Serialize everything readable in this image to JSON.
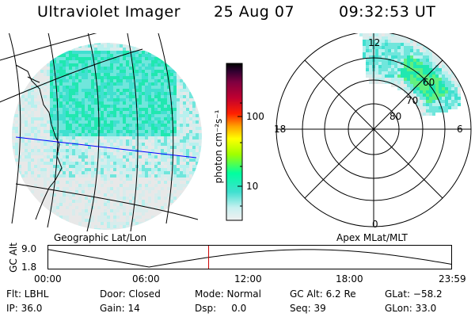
{
  "header": {
    "instrument": "Ultraviolet Imager",
    "date": "25 Aug 07",
    "time": "09:32:53 UT"
  },
  "colors": {
    "geo_grid": "#000000",
    "scan_line": "#0000ff",
    "time_marker": "#cc0000"
  },
  "colorbar": {
    "label": "photon cm⁻²s⁻¹",
    "ticks": [
      "100",
      "10"
    ],
    "stops": [
      "#f0f0f0",
      "#c8f0f0",
      "#40e0d0",
      "#00ffa0",
      "#a0ff00",
      "#ffff00",
      "#ffa000",
      "#ff2000",
      "#c00030",
      "#800040",
      "#300030",
      "#000000"
    ]
  },
  "geo_panel": {
    "label": "Geographic Lat/Lon"
  },
  "polar_panel": {
    "label": "Apex MLat/MLT",
    "mlt_labels": {
      "top": "12",
      "left": "18",
      "right": "6",
      "bottom": "0"
    },
    "lat_labels": [
      "60",
      "70",
      "80"
    ]
  },
  "altitude_plot": {
    "ylabel": "GC Alt",
    "ymax": "9.0",
    "ymin": "1.8",
    "time_ticks": [
      "00:00",
      "06:00",
      "12:00",
      "18:00",
      "23:59"
    ],
    "marker_hour": 9.55
  },
  "info": {
    "flt": "Flt: LBHL",
    "ip": "IP: 36.0",
    "door": "Door: Closed",
    "gain": "Gain: 14",
    "mode": "Mode: Normal",
    "dsp": "Dsp:     0.0",
    "gc_alt": "GC Alt: 6.2 Re",
    "seq": "Seq: 39",
    "glat": "GLat: −58.2",
    "glon": "GLon: 33.0"
  }
}
